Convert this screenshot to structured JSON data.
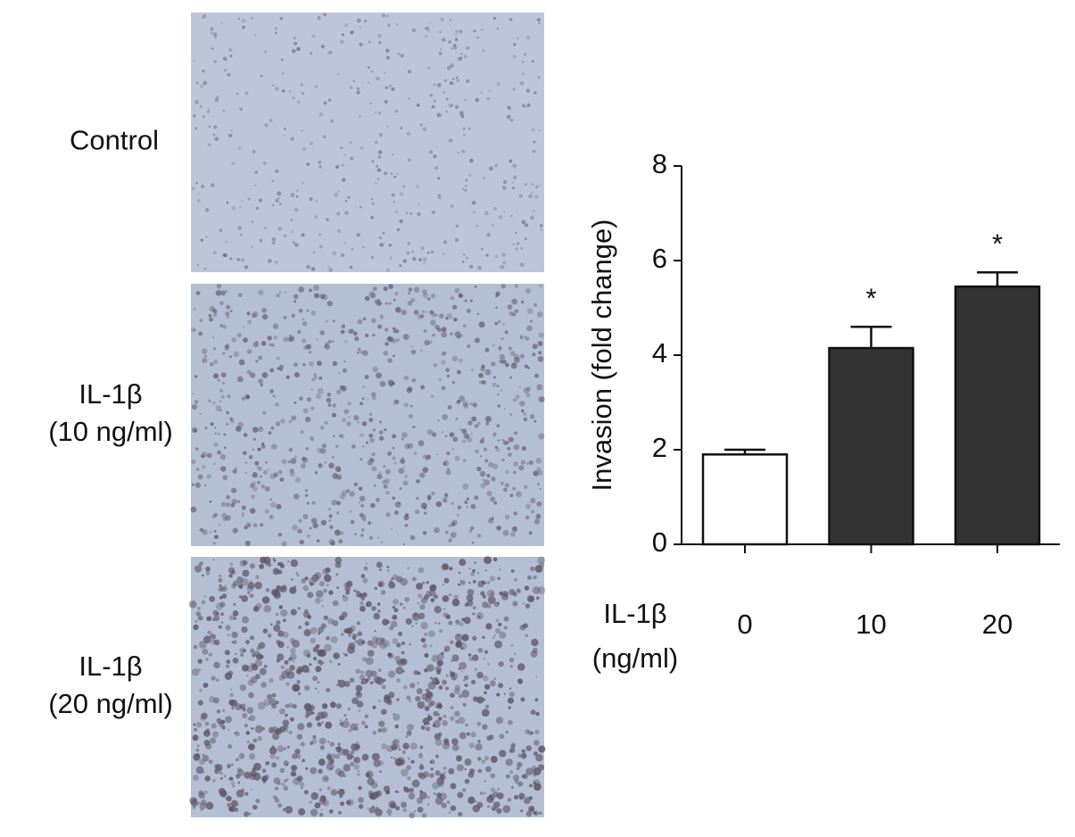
{
  "panels": [
    {
      "label": [
        "Control"
      ]
    },
    {
      "label": [
        "IL-1β",
        "(10 ng/ml)"
      ]
    },
    {
      "label": [
        "IL-1β",
        "(20 ng/ml)"
      ]
    }
  ],
  "chart_data": {
    "type": "bar",
    "y_label": "Invasion (fold change)",
    "x_label": [
      "IL-1β",
      "(ng/ml)"
    ],
    "categories": [
      "0",
      "10",
      "20"
    ],
    "values": [
      1.9,
      4.15,
      5.45
    ],
    "errors": [
      0.1,
      0.45,
      0.3
    ],
    "colors": [
      "#ffffff",
      "#333333",
      "#333333"
    ],
    "annotations": [
      null,
      "*",
      "*"
    ],
    "ylim": [
      0,
      8
    ],
    "yticks": [
      0,
      2,
      4,
      6,
      8
    ]
  }
}
